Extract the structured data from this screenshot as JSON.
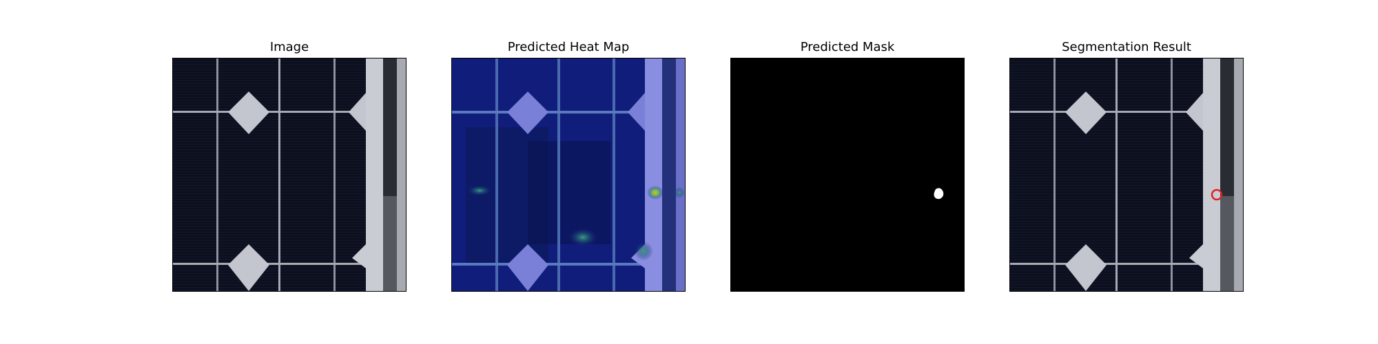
{
  "panels": [
    {
      "title": "Image"
    },
    {
      "title": "Predicted Heat Map"
    },
    {
      "title": "Predicted Mask"
    },
    {
      "title": "Segmentation Result"
    }
  ],
  "colors": {
    "cell": "#0c0f1e",
    "busbar": "#9ea2ad",
    "corner": "#c3c6cf",
    "heatmap_base": "#101d7a",
    "mask_bg": "#000000",
    "mask_fg": "#ffffff",
    "defect_outline": "#e02020"
  }
}
